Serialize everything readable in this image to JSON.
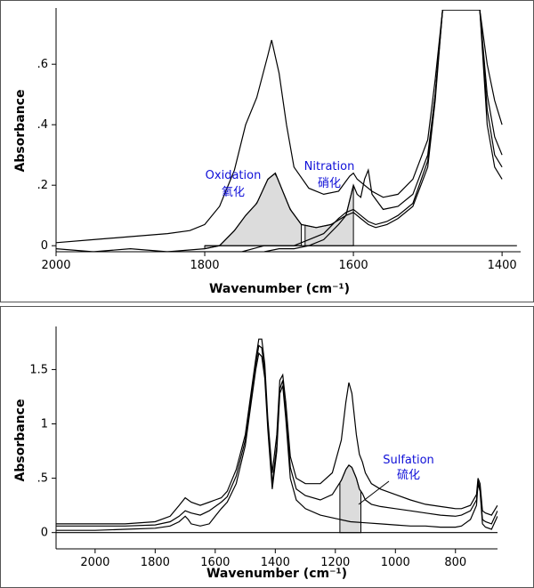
{
  "chart_data": [
    {
      "type": "line",
      "xlabel": "Wavenumber (cm⁻¹)",
      "ylabel": "Absorbance",
      "x_ticks": [
        2000,
        1800,
        1600,
        1400
      ],
      "x_tick_labels": [
        "2000",
        "1800",
        "1600",
        "1400"
      ],
      "y_ticks": [
        0,
        0.2,
        0.4,
        0.6
      ],
      "y_tick_labels": [
        "0",
        ".2",
        ".4",
        ".6"
      ],
      "xlim": [
        2000,
        1375
      ],
      "ylim": [
        -0.02,
        0.78
      ],
      "grid": false,
      "annotations": [
        {
          "text": "Oxidation",
          "x": 1760,
          "y": 0.19
        },
        {
          "text": "氧化",
          "x": 1760,
          "y": 0.13
        },
        {
          "text": "Nitration",
          "x": 1612,
          "y": 0.22
        },
        {
          "text": "硝化",
          "x": 1612,
          "y": 0.16
        }
      ],
      "shaded_regions": [
        {
          "name": "oxidation-band",
          "x_from": 1800,
          "x_to": 1670
        },
        {
          "name": "nitration-band",
          "x_from": 1665,
          "x_to": 1600
        }
      ],
      "baseline": {
        "x": [
          1800,
          1380
        ],
        "y": [
          0,
          0
        ]
      },
      "series": [
        {
          "x": [
            2000,
            1950,
            1900,
            1850,
            1820,
            1800,
            1780,
            1760,
            1745,
            1730,
            1715,
            1710,
            1700,
            1690,
            1680,
            1660,
            1640,
            1620,
            1605,
            1600,
            1595,
            1585,
            1575,
            1560,
            1540,
            1520,
            1500,
            1490,
            1480,
            1470,
            1460,
            1450,
            1440,
            1430,
            1420,
            1410,
            1400
          ],
          "y": [
            0.01,
            0.02,
            0.03,
            0.04,
            0.05,
            0.07,
            0.13,
            0.25,
            0.4,
            0.49,
            0.63,
            0.68,
            0.57,
            0.4,
            0.26,
            0.19,
            0.17,
            0.18,
            0.23,
            0.24,
            0.22,
            0.2,
            0.18,
            0.16,
            0.17,
            0.22,
            0.35,
            0.55,
            0.78,
            0.78,
            0.78,
            0.78,
            0.78,
            0.78,
            0.6,
            0.48,
            0.4
          ]
        },
        {
          "x": [
            2000,
            1950,
            1900,
            1850,
            1800,
            1780,
            1760,
            1745,
            1730,
            1715,
            1705,
            1695,
            1685,
            1670,
            1650,
            1630,
            1610,
            1600,
            1595,
            1590,
            1585,
            1580,
            1575,
            1560,
            1540,
            1520,
            1500,
            1490,
            1480,
            1470,
            1460,
            1450,
            1440,
            1430,
            1420,
            1410,
            1400
          ],
          "y": [
            -0.01,
            -0.02,
            -0.01,
            -0.02,
            -0.01,
            0.0,
            0.05,
            0.1,
            0.14,
            0.22,
            0.24,
            0.18,
            0.12,
            0.07,
            0.06,
            0.07,
            0.1,
            0.2,
            0.17,
            0.16,
            0.22,
            0.25,
            0.17,
            0.12,
            0.13,
            0.17,
            0.3,
            0.5,
            0.78,
            0.78,
            0.78,
            0.78,
            0.78,
            0.78,
            0.5,
            0.36,
            0.3
          ]
        },
        {
          "x": [
            2000,
            1950,
            1900,
            1850,
            1800,
            1750,
            1720,
            1700,
            1680,
            1660,
            1640,
            1620,
            1610,
            1600,
            1590,
            1580,
            1570,
            1555,
            1540,
            1520,
            1500,
            1490,
            1480,
            1470,
            1460,
            1450,
            1440,
            1430,
            1420,
            1410,
            1400
          ],
          "y": [
            -0.02,
            -0.03,
            -0.03,
            -0.02,
            -0.02,
            -0.02,
            0.0,
            0.0,
            0.0,
            0.02,
            0.04,
            0.09,
            0.11,
            0.12,
            0.1,
            0.08,
            0.07,
            0.08,
            0.1,
            0.14,
            0.28,
            0.5,
            0.78,
            0.78,
            0.78,
            0.78,
            0.78,
            0.78,
            0.45,
            0.3,
            0.26
          ]
        },
        {
          "x": [
            2000,
            1950,
            1900,
            1850,
            1800,
            1750,
            1720,
            1700,
            1680,
            1660,
            1640,
            1620,
            1610,
            1600,
            1590,
            1580,
            1570,
            1555,
            1540,
            1520,
            1500,
            1490,
            1480,
            1470,
            1460,
            1450,
            1440,
            1430,
            1420,
            1410,
            1400
          ],
          "y": [
            -0.03,
            -0.02,
            -0.04,
            -0.03,
            -0.03,
            -0.03,
            -0.02,
            -0.01,
            -0.01,
            0.0,
            0.02,
            0.07,
            0.1,
            0.11,
            0.09,
            0.07,
            0.06,
            0.07,
            0.09,
            0.13,
            0.26,
            0.48,
            0.78,
            0.78,
            0.78,
            0.78,
            0.78,
            0.78,
            0.4,
            0.26,
            0.22
          ]
        }
      ]
    },
    {
      "type": "line",
      "xlabel": "Wavenumber (cm⁻¹)",
      "ylabel": "Absorbance",
      "x_ticks": [
        2000,
        1800,
        1600,
        1400,
        1200,
        1000,
        800
      ],
      "x_tick_labels": [
        "2000",
        "1800",
        "1600",
        "1400",
        "1200",
        "1000",
        "800"
      ],
      "y_ticks": [
        0,
        0.5,
        1,
        1.5
      ],
      "y_tick_labels": [
        "0",
        ".5",
        "1",
        "1.5"
      ],
      "xlim": [
        2130,
        660
      ],
      "ylim": [
        -0.15,
        1.88
      ],
      "grid": false,
      "annotations": [
        {
          "text": "Sulfation",
          "x": 1040,
          "y": 0.58
        },
        {
          "text": "硫化",
          "x": 1040,
          "y": 0.45
        }
      ],
      "shaded_regions": [
        {
          "name": "sulfation-band",
          "x_from": 1185,
          "x_to": 1115
        }
      ],
      "baseline": {
        "x": [
          2130,
          660
        ],
        "y": [
          0,
          0
        ]
      },
      "series": [
        {
          "x": [
            2130,
            2000,
            1900,
            1800,
            1750,
            1720,
            1700,
            1680,
            1650,
            1620,
            1600,
            1580,
            1560,
            1530,
            1500,
            1480,
            1465,
            1455,
            1445,
            1435,
            1425,
            1410,
            1395,
            1385,
            1375,
            1365,
            1350,
            1330,
            1300,
            1250,
            1210,
            1180,
            1165,
            1155,
            1145,
            1130,
            1120,
            1110,
            1100,
            1080,
            1050,
            1000,
            950,
            900,
            850,
            800,
            780,
            750,
            730,
            725,
            718,
            710,
            700,
            680,
            660
          ],
          "y": [
            0.08,
            0.08,
            0.08,
            0.1,
            0.15,
            0.25,
            0.32,
            0.28,
            0.25,
            0.28,
            0.3,
            0.32,
            0.38,
            0.58,
            0.9,
            1.3,
            1.6,
            1.78,
            1.78,
            1.55,
            1.05,
            0.55,
            0.9,
            1.4,
            1.45,
            1.2,
            0.7,
            0.5,
            0.45,
            0.45,
            0.55,
            0.85,
            1.2,
            1.38,
            1.28,
            0.9,
            0.72,
            0.65,
            0.55,
            0.45,
            0.4,
            0.35,
            0.3,
            0.26,
            0.24,
            0.22,
            0.22,
            0.25,
            0.35,
            0.5,
            0.45,
            0.2,
            0.18,
            0.16,
            0.25
          ]
        },
        {
          "x": [
            2130,
            2000,
            1900,
            1800,
            1750,
            1720,
            1700,
            1680,
            1650,
            1620,
            1600,
            1580,
            1560,
            1530,
            1500,
            1480,
            1465,
            1455,
            1445,
            1435,
            1425,
            1410,
            1395,
            1385,
            1375,
            1365,
            1350,
            1330,
            1300,
            1250,
            1210,
            1180,
            1165,
            1155,
            1145,
            1130,
            1120,
            1110,
            1100,
            1080,
            1050,
            1000,
            950,
            900,
            850,
            800,
            780,
            750,
            730,
            725,
            718,
            710,
            700,
            680,
            660
          ],
          "y": [
            0.06,
            0.06,
            0.06,
            0.07,
            0.1,
            0.15,
            0.2,
            0.18,
            0.16,
            0.2,
            0.24,
            0.28,
            0.33,
            0.52,
            0.85,
            1.25,
            1.55,
            1.72,
            1.7,
            1.48,
            1.0,
            0.45,
            0.8,
            1.32,
            1.4,
            1.1,
            0.6,
            0.4,
            0.34,
            0.3,
            0.35,
            0.48,
            0.58,
            0.62,
            0.6,
            0.5,
            0.4,
            0.36,
            0.3,
            0.26,
            0.24,
            0.22,
            0.2,
            0.18,
            0.16,
            0.15,
            0.16,
            0.2,
            0.3,
            0.48,
            0.4,
            0.12,
            0.1,
            0.08,
            0.2
          ]
        },
        {
          "x": [
            2130,
            2000,
            1900,
            1800,
            1750,
            1720,
            1700,
            1690,
            1680,
            1650,
            1620,
            1600,
            1580,
            1560,
            1530,
            1500,
            1480,
            1465,
            1455,
            1445,
            1435,
            1425,
            1410,
            1395,
            1385,
            1375,
            1365,
            1350,
            1330,
            1300,
            1250,
            1200,
            1150,
            1100,
            1050,
            1000,
            950,
            900,
            850,
            800,
            780,
            750,
            730,
            725,
            718,
            710,
            700,
            680,
            660
          ],
          "y": [
            0.02,
            0.02,
            0.03,
            0.04,
            0.06,
            0.1,
            0.15,
            0.12,
            0.08,
            0.06,
            0.08,
            0.15,
            0.22,
            0.28,
            0.45,
            0.8,
            1.2,
            1.5,
            1.65,
            1.62,
            1.42,
            0.95,
            0.4,
            0.75,
            1.28,
            1.35,
            1.05,
            0.5,
            0.3,
            0.22,
            0.16,
            0.13,
            0.1,
            0.09,
            0.08,
            0.07,
            0.06,
            0.06,
            0.05,
            0.05,
            0.06,
            0.12,
            0.25,
            0.45,
            0.38,
            0.08,
            0.05,
            0.03,
            0.15
          ]
        }
      ]
    }
  ]
}
